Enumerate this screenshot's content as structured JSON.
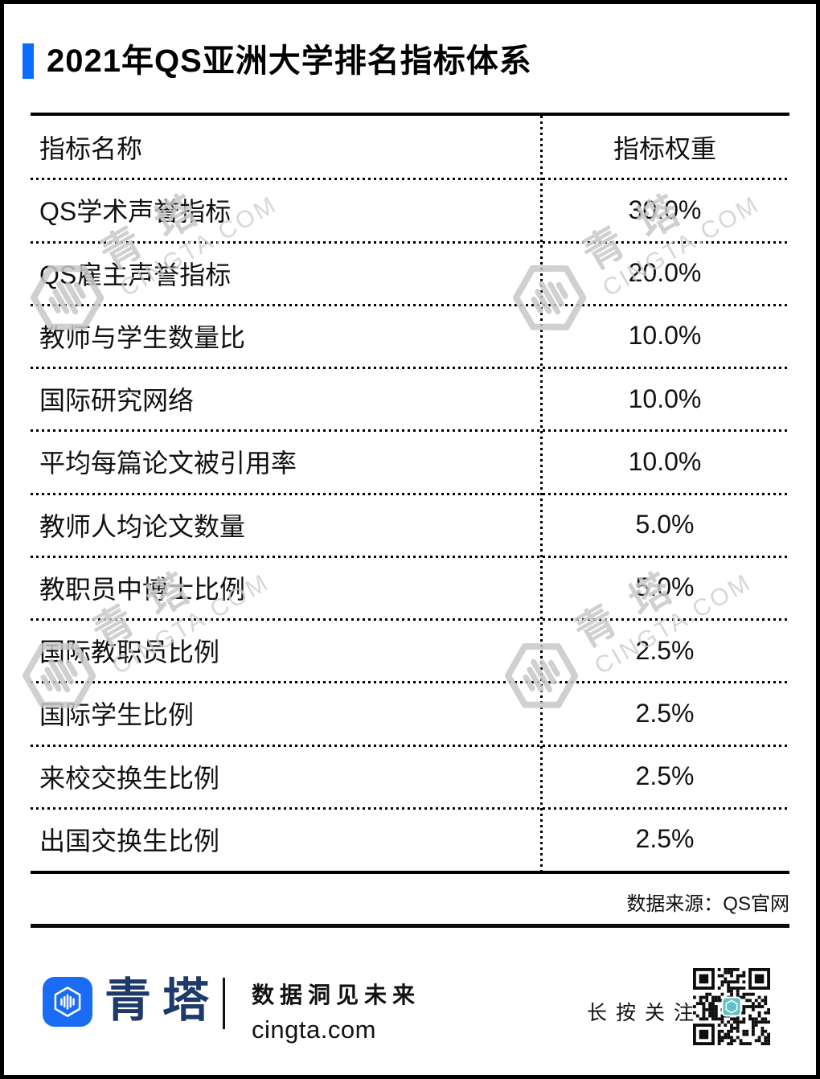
{
  "header": {
    "title": "2021年QS亚洲大学排名指标体系"
  },
  "table": {
    "headers": [
      "指标名称",
      "指标权重"
    ],
    "rows": [
      {
        "name": "QS学术声誉指标",
        "weight": "30.0%"
      },
      {
        "name": "QS雇主声誉指标",
        "weight": "20.0%"
      },
      {
        "name": "教师与学生数量比",
        "weight": "10.0%"
      },
      {
        "name": "国际研究网络",
        "weight": "10.0%"
      },
      {
        "name": "平均每篇论文被引用率",
        "weight": "10.0%"
      },
      {
        "name": "教师人均论文数量",
        "weight": "5.0%"
      },
      {
        "name": "教职员中博士比例",
        "weight": "5.0%"
      },
      {
        "name": "国际教职员比例",
        "weight": "2.5%"
      },
      {
        "name": "国际学生比例",
        "weight": "2.5%"
      },
      {
        "name": "来校交换生比例",
        "weight": "2.5%"
      },
      {
        "name": "出国交换生比例",
        "weight": "2.5%"
      }
    ],
    "source_note": "数据来源：QS官网"
  },
  "chart_data": {
    "type": "table",
    "title": "2021年QS亚洲大学排名指标体系",
    "columns": [
      "指标名称",
      "指标权重"
    ],
    "rows": [
      [
        "QS学术声誉指标",
        "30.0%"
      ],
      [
        "QS雇主声誉指标",
        "20.0%"
      ],
      [
        "教师与学生数量比",
        "10.0%"
      ],
      [
        "国际研究网络",
        "10.0%"
      ],
      [
        "平均每篇论文被引用率",
        "10.0%"
      ],
      [
        "教师人均论文数量",
        "5.0%"
      ],
      [
        "教职员中博士比例",
        "5.0%"
      ],
      [
        "国际教职员比例",
        "2.5%"
      ],
      [
        "国际学生比例",
        "2.5%"
      ],
      [
        "来校交换生比例",
        "2.5%"
      ],
      [
        "出国交换生比例",
        "2.5%"
      ]
    ],
    "weights_numeric_percent": [
      30.0,
      20.0,
      10.0,
      10.0,
      10.0,
      5.0,
      5.0,
      2.5,
      2.5,
      2.5,
      2.5
    ]
  },
  "watermark": {
    "brand": "青塔",
    "domain": "CINGTA.COM"
  },
  "footer": {
    "brand": "青塔",
    "tagline": "数据洞见未来",
    "website": "cingta.com",
    "qr_caption": "长按关注"
  },
  "colors": {
    "accent_blue": "#0a6cff",
    "logo_blue": "#1b6cf5",
    "brand_navy": "#1e3a6b",
    "qr_teal": "#5fc3c5"
  }
}
